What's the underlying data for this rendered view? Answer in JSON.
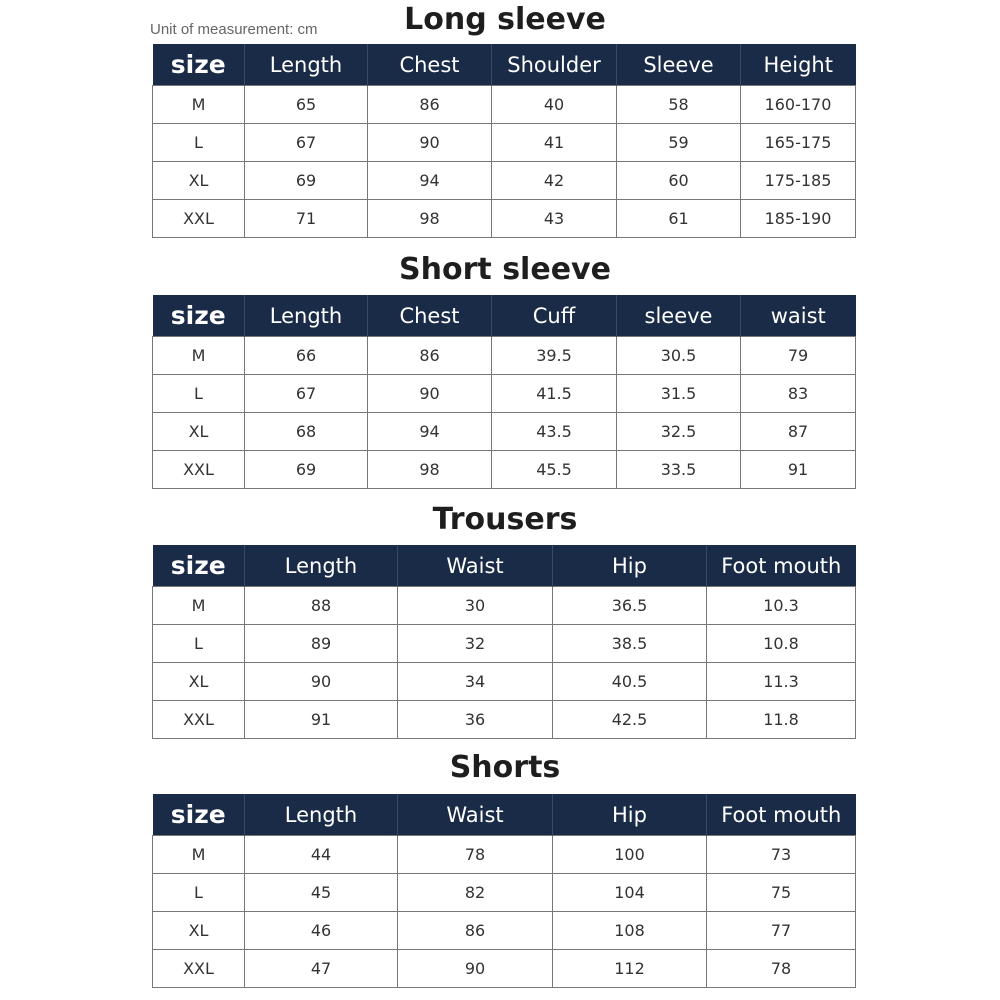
{
  "unit_label": "Unit of measurement: cm",
  "colors": {
    "header_bg": "#1a2b48",
    "header_text": "#ffffff"
  },
  "tables": [
    {
      "title": "Long sleeve",
      "headers": [
        "size",
        "Length",
        "Chest",
        "Shoulder",
        "Sleeve",
        "Height"
      ],
      "rows": [
        [
          "M",
          "65",
          "86",
          "40",
          "58",
          "160-170"
        ],
        [
          "L",
          "67",
          "90",
          "41",
          "59",
          "165-175"
        ],
        [
          "XL",
          "69",
          "94",
          "42",
          "60",
          "175-185"
        ],
        [
          "XXL",
          "71",
          "98",
          "43",
          "61",
          "185-190"
        ]
      ]
    },
    {
      "title": "Short sleeve",
      "headers": [
        "size",
        "Length",
        "Chest",
        "Cuff",
        "sleeve",
        "waist"
      ],
      "rows": [
        [
          "M",
          "66",
          "86",
          "39.5",
          "30.5",
          "79"
        ],
        [
          "L",
          "67",
          "90",
          "41.5",
          "31.5",
          "83"
        ],
        [
          "XL",
          "68",
          "94",
          "43.5",
          "32.5",
          "87"
        ],
        [
          "XXL",
          "69",
          "98",
          "45.5",
          "33.5",
          "91"
        ]
      ]
    },
    {
      "title": "Trousers",
      "headers": [
        "size",
        "Length",
        "Waist",
        "Hip",
        "Foot mouth"
      ],
      "rows": [
        [
          "M",
          "88",
          "30",
          "36.5",
          "10.3"
        ],
        [
          "L",
          "89",
          "32",
          "38.5",
          "10.8"
        ],
        [
          "XL",
          "90",
          "34",
          "40.5",
          "11.3"
        ],
        [
          "XXL",
          "91",
          "36",
          "42.5",
          "11.8"
        ]
      ]
    },
    {
      "title": "Shorts",
      "headers": [
        "size",
        "Length",
        "Waist",
        "Hip",
        "Foot mouth"
      ],
      "rows": [
        [
          "M",
          "44",
          "78",
          "100",
          "73"
        ],
        [
          "L",
          "45",
          "82",
          "104",
          "75"
        ],
        [
          "XL",
          "46",
          "86",
          "108",
          "77"
        ],
        [
          "XXL",
          "47",
          "90",
          "112",
          "78"
        ]
      ]
    }
  ]
}
